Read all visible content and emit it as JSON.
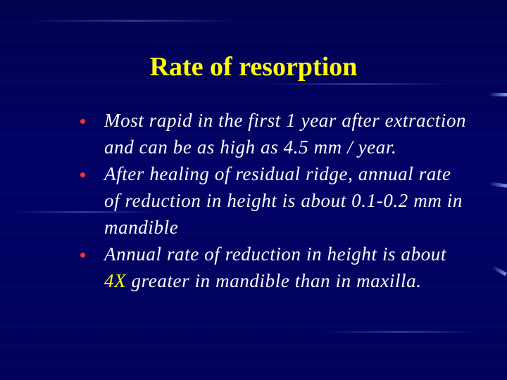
{
  "slide": {
    "title": "Rate of resorption",
    "bullets": [
      {
        "text": "Most rapid in the first 1 year after extraction and can be as high as 4.5 mm / year."
      },
      {
        "text": "After healing of residual ridge, annual rate of reduction in height is about 0.1-0.2 mm in mandible"
      },
      {
        "before": "Annual rate of reduction in height is about ",
        "highlight": "4X",
        "after": " greater in mandible than in maxilla."
      }
    ]
  },
  "colors": {
    "background": "#000058",
    "title": "#ffff00",
    "body_text": "#ffffff",
    "bullet": "#ff3030",
    "highlight": "#ffff00"
  }
}
